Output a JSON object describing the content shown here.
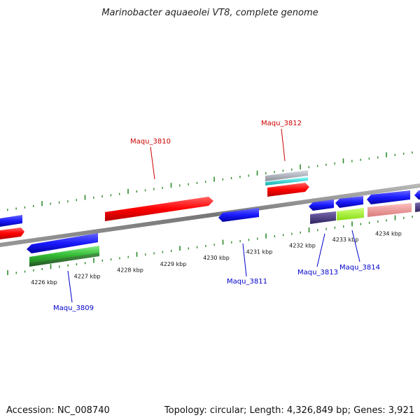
{
  "title": "Marinobacter aquaeolei VT8, complete genome",
  "footer": {
    "accession": "Accession: NC_008740",
    "summary": "Topology: circular; Length: 4,326,849 bp; Genes: 3,921"
  },
  "ticks": [
    "4226 kbp",
    "4227 kbp",
    "4228 kbp",
    "4229 kbp",
    "4230 kbp",
    "4231 kbp",
    "4232 kbp",
    "4233 kbp",
    "4234 kbp"
  ],
  "gene_labels": [
    {
      "text": "Maqu_3809",
      "strand": "minus",
      "color": "#0000cc"
    },
    {
      "text": "Maqu_3810",
      "strand": "plus",
      "color": "#cc0000"
    },
    {
      "text": "Maqu_3811",
      "strand": "minus",
      "color": "#0000cc"
    },
    {
      "text": "Maqu_3812",
      "strand": "plus",
      "color": "#cc0000"
    },
    {
      "text": "Maqu_3813",
      "strand": "minus",
      "color": "#0000cc"
    },
    {
      "text": "Maqu_3814",
      "strand": "minus",
      "color": "#0000cc"
    }
  ],
  "colors": {
    "forward_gene": "#ff0000",
    "reverse_gene": "#1a1aff",
    "backbone": "#8a8a8a",
    "ruler_tick": "#2a8a2a",
    "cds_green": "#44cc44",
    "cds_darkgreen": "#2a7a2a",
    "cds_cyan": "#22cccc",
    "cds_purple": "#4a3a8a",
    "cds_lime": "#aaff33",
    "cds_pink": "#f29a9a"
  }
}
